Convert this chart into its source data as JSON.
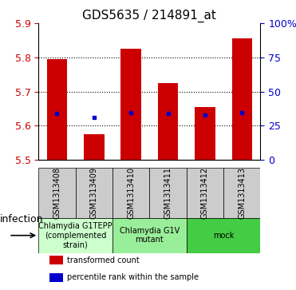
{
  "title": "GDS5635 / 214891_at",
  "samples": [
    "GSM1313408",
    "GSM1313409",
    "GSM1313410",
    "GSM1313411",
    "GSM1313412",
    "GSM1313413"
  ],
  "bar_bottoms": [
    5.5,
    5.5,
    5.5,
    5.5,
    5.5,
    5.5
  ],
  "bar_tops": [
    5.795,
    5.575,
    5.825,
    5.725,
    5.655,
    5.855
  ],
  "percentile_values": [
    5.635,
    5.625,
    5.638,
    5.637,
    5.632,
    5.638
  ],
  "ylim": [
    5.5,
    5.9
  ],
  "yticks": [
    5.5,
    5.6,
    5.7,
    5.8,
    5.9
  ],
  "right_yticks": [
    0,
    25,
    50,
    75,
    100
  ],
  "right_ytick_labels": [
    "0",
    "25",
    "50",
    "75",
    "100%"
  ],
  "bar_color": "#cc0000",
  "percentile_color": "#0000cc",
  "bar_width": 0.55,
  "groups": [
    {
      "label": "Chlamydia G1TEPP\n(complemented\nstrain)",
      "start": 0,
      "end": 2,
      "color": "#ccffcc"
    },
    {
      "label": "Chlamydia G1V\nmutant",
      "start": 2,
      "end": 4,
      "color": "#99ee99"
    },
    {
      "label": "mock",
      "start": 4,
      "end": 6,
      "color": "#44cc44"
    }
  ],
  "group_label": "infection",
  "legend_items": [
    {
      "label": "transformed count",
      "color": "#cc0000"
    },
    {
      "label": "percentile rank within the sample",
      "color": "#0000cc"
    }
  ],
  "sample_box_color": "#cccccc",
  "title_fontsize": 11,
  "tick_fontsize": 9,
  "sample_fontsize": 7,
  "group_fontsize": 7,
  "background_color": "#ffffff",
  "plot_bg_color": "#ffffff",
  "grid_color": "#000000",
  "right_tick_color": "#0000cc",
  "left_tick_color": "#cc0000"
}
